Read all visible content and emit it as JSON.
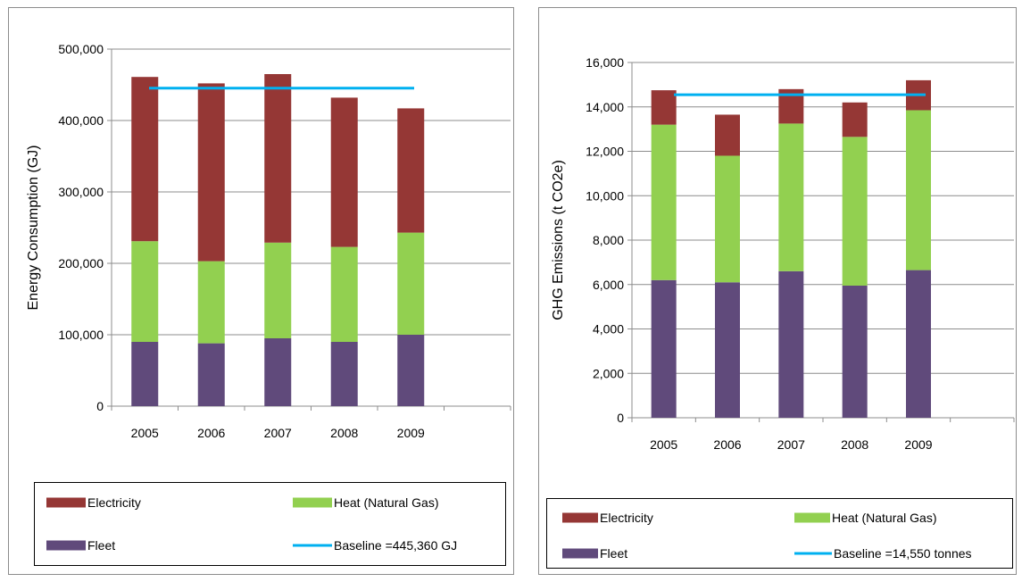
{
  "colors": {
    "electricity": "#953735",
    "heat": "#92D050",
    "fleet": "#604A7B",
    "baseline": "#00B0F0"
  },
  "chart_data": [
    {
      "type": "bar",
      "stacked": true,
      "title": "",
      "xlabel": "",
      "ylabel": "Energy Consumption (GJ)",
      "ylim": [
        0,
        500000
      ],
      "yticks": [
        "0",
        "100,000",
        "200,000",
        "300,000",
        "400,000",
        "500,000"
      ],
      "grid": true,
      "legend_position": "bottom",
      "categories": [
        "2005",
        "2006",
        "2007",
        "2008",
        "2009"
      ],
      "series": [
        {
          "name": "Fleet",
          "key": "fleet",
          "values": [
            90000,
            88000,
            95000,
            90000,
            100000
          ]
        },
        {
          "name": "Heat (Natural Gas)",
          "key": "heat",
          "values": [
            141000,
            115000,
            134000,
            133000,
            143000
          ]
        },
        {
          "name": "Electricity",
          "key": "electricity",
          "values": [
            230000,
            249000,
            236000,
            209000,
            174000
          ]
        }
      ],
      "baseline": {
        "name": "Baseline =445,360 GJ",
        "value": 445360
      },
      "legend": [
        {
          "key": "electricity",
          "label": "Electricity",
          "kind": "box"
        },
        {
          "key": "heat",
          "label": "Heat (Natural Gas)",
          "kind": "box"
        },
        {
          "key": "fleet",
          "label": "Fleet",
          "kind": "box"
        },
        {
          "key": "baseline",
          "label": "Baseline =445,360 GJ",
          "kind": "line"
        }
      ]
    },
    {
      "type": "bar",
      "stacked": true,
      "title": "",
      "xlabel": "",
      "ylabel": "GHG Emissions  (t CO2e)",
      "ylim": [
        0,
        16000
      ],
      "yticks": [
        "0",
        "2,000",
        "4,000",
        "6,000",
        "8,000",
        "10,000",
        "12,000",
        "14,000",
        "16,000"
      ],
      "grid": true,
      "legend_position": "bottom",
      "categories": [
        "2005",
        "2006",
        "2007",
        "2008",
        "2009"
      ],
      "series": [
        {
          "name": "Fleet",
          "key": "fleet",
          "values": [
            6200,
            6100,
            6600,
            5950,
            6650
          ]
        },
        {
          "name": "Heat (Natural Gas)",
          "key": "heat",
          "values": [
            7000,
            5700,
            6650,
            6700,
            7200
          ]
        },
        {
          "name": "Electricity",
          "key": "electricity",
          "values": [
            1550,
            1850,
            1550,
            1550,
            1350
          ]
        }
      ],
      "baseline": {
        "name": "Baseline =14,550 tonnes",
        "value": 14550
      },
      "legend": [
        {
          "key": "electricity",
          "label": "Electricity",
          "kind": "box"
        },
        {
          "key": "heat",
          "label": "Heat (Natural Gas)",
          "kind": "box"
        },
        {
          "key": "fleet",
          "label": "Fleet",
          "kind": "box"
        },
        {
          "key": "baseline",
          "label": "Baseline =14,550 tonnes",
          "kind": "line"
        }
      ]
    }
  ]
}
